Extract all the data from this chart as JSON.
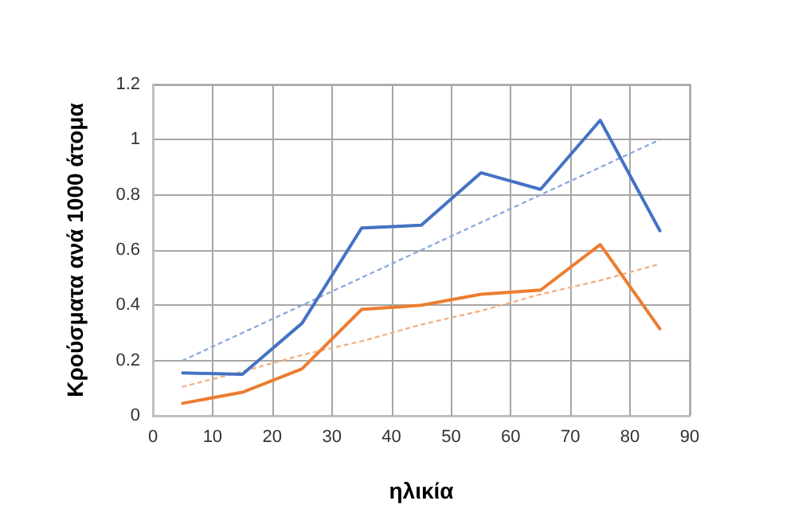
{
  "chart_data": {
    "type": "line",
    "xlabel": "ηλικία",
    "ylabel": "Κρούσματα ανά 1000 άτομα",
    "x": [
      5,
      15,
      25,
      35,
      45,
      55,
      65,
      75,
      85
    ],
    "series": [
      {
        "color": "#4472c4",
        "values": [
          0.155,
          0.15,
          0.335,
          0.68,
          0.69,
          0.88,
          0.82,
          1.07,
          0.67
        ]
      },
      {
        "color": "#ed7d31",
        "values": [
          0.045,
          0.085,
          0.17,
          0.385,
          0.4,
          0.44,
          0.455,
          0.62,
          0.315
        ]
      },
      {
        "color": "#8faadc",
        "values": [
          0.2,
          0.3,
          0.4,
          0.5,
          0.6,
          0.7,
          0.8,
          0.9,
          1.0
        ],
        "line_style": "dotted"
      },
      {
        "color": "#f4b183",
        "values": [
          0.105,
          0.16,
          0.22,
          0.27,
          0.33,
          0.38,
          0.44,
          0.49,
          0.55
        ],
        "line_style": "dotted"
      }
    ],
    "xlim": [
      0,
      90
    ],
    "xticks": [
      0,
      10,
      20,
      30,
      40,
      50,
      60,
      70,
      80,
      90
    ],
    "ylim": [
      0,
      1.2
    ],
    "yticks": [
      0,
      0.2,
      0.4,
      0.6,
      0.8,
      1,
      1.2
    ],
    "grid": true,
    "marker": "none",
    "line_style": "solid"
  }
}
